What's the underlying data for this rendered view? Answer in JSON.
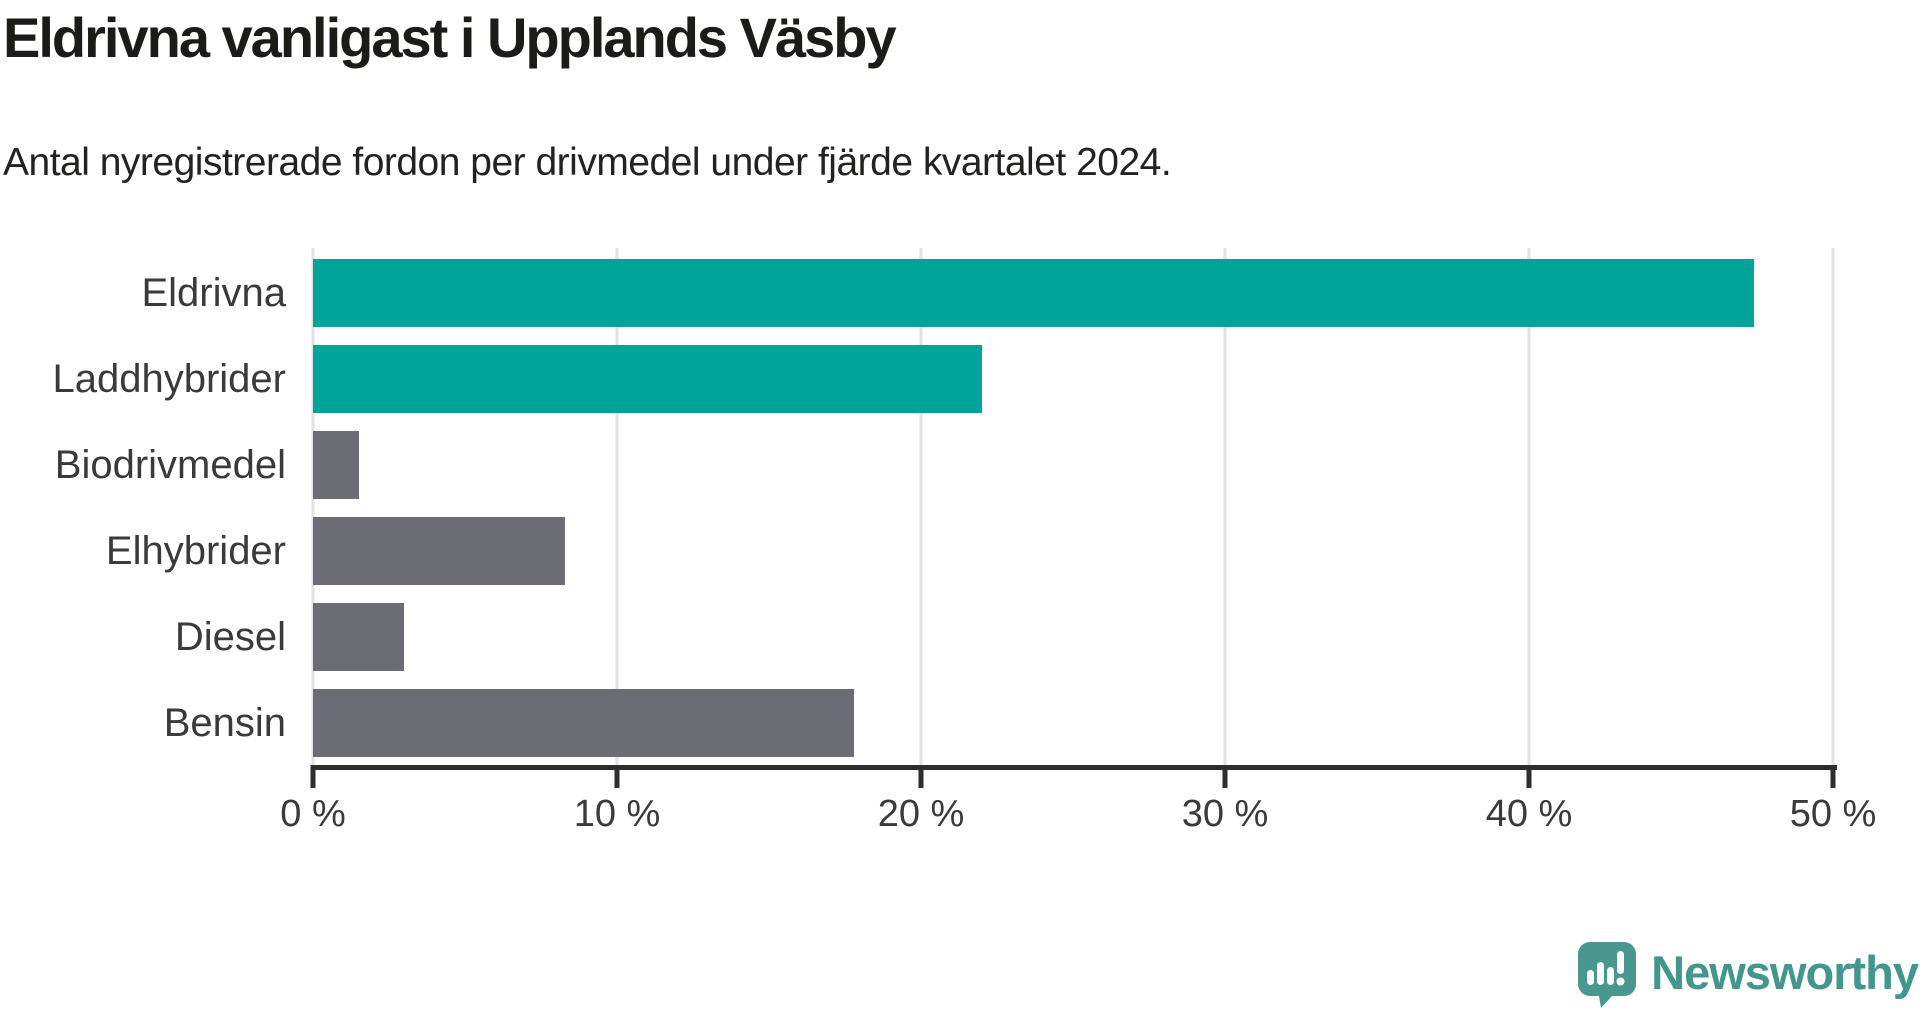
{
  "header": {
    "title": "Eldrivna vanligast i Upplands Väsby",
    "subtitle": "Antal nyregistrerade fordon per drivmedel under fjärde kvartalet 2024."
  },
  "chart_data": {
    "type": "bar",
    "orientation": "horizontal",
    "title": "Eldrivna vanligast i Upplands Väsby",
    "subtitle": "Antal nyregistrerade fordon per drivmedel under fjärde kvartalet 2024.",
    "categories": [
      "Eldrivna",
      "Laddhybrider",
      "Biodrivmedel",
      "Elhybrider",
      "Diesel",
      "Bensin"
    ],
    "values": [
      47.4,
      22.0,
      1.5,
      8.3,
      3.0,
      17.8
    ],
    "unit": "%",
    "xlim": [
      0,
      50
    ],
    "x_ticks": [
      0,
      10,
      20,
      30,
      40,
      50
    ],
    "x_tick_labels": [
      "0 %",
      "10 %",
      "20 %",
      "30 %",
      "40 %",
      "50 %"
    ],
    "bar_colors": [
      "#00a49b",
      "#00a49b",
      "#6c6c74",
      "#6c6c74",
      "#6c6c74",
      "#6c6c74"
    ],
    "highlight_color": "#00a49b",
    "default_color": "#6c6c74",
    "gridline_color": "#e2e2e2",
    "axis_color": "#2e2e2e",
    "grid": true,
    "legend": "none"
  },
  "footer": {
    "brand": "Newsworthy",
    "brand_color": "#42968e"
  }
}
